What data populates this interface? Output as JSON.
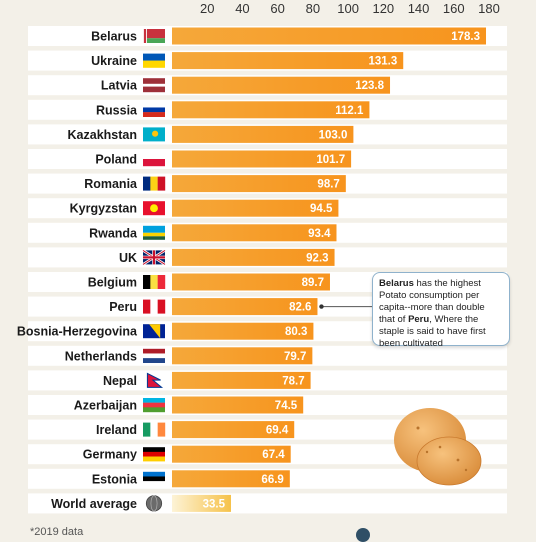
{
  "chart_data": {
    "type": "bar",
    "orientation": "horizontal",
    "x_ticks": [
      20,
      40,
      60,
      80,
      100,
      120,
      140,
      160,
      180
    ],
    "xlim": [
      0,
      180
    ],
    "categories": [
      "Belarus",
      "Ukraine",
      "Latvia",
      "Russia",
      "Kazakhstan",
      "Poland",
      "Romania",
      "Kyrgyzstan",
      "Rwanda",
      "UK",
      "Belgium",
      "Peru",
      "Bosnia-Herzegovina",
      "Netherlands",
      "Nepal",
      "Azerbaijan",
      "Ireland",
      "Germany",
      "Estonia",
      "World average"
    ],
    "values": [
      178.3,
      131.3,
      123.8,
      112.1,
      103.0,
      101.7,
      98.7,
      94.5,
      93.4,
      92.3,
      89.7,
      82.6,
      80.3,
      79.7,
      78.7,
      74.5,
      69.4,
      67.4,
      66.9,
      33.5
    ],
    "value_labels": [
      "178.3",
      "131.3",
      "123.8",
      "112.1",
      "103.0",
      "101.7",
      "98.7",
      "94.5",
      "93.4",
      "92.3",
      "89.7",
      "82.6",
      "80.3",
      "79.7",
      "78.7",
      "74.5",
      "69.4",
      "67.4",
      "66.9",
      "33.5"
    ],
    "flags": [
      "belarus-flag",
      "ukraine-flag",
      "latvia-flag",
      "russia-flag",
      "kazakhstan-flag",
      "poland-flag",
      "romania-flag",
      "kyrgyzstan-flag",
      "rwanda-flag",
      "uk-flag",
      "belgium-flag",
      "peru-flag",
      "bosnia-herzegovina-flag",
      "netherlands-flag",
      "nepal-flag",
      "azerbaijan-flag",
      "ireland-flag",
      "germany-flag",
      "estonia-flag",
      "globe-icon"
    ],
    "colors": {
      "bar": "#f7941d",
      "bar_light": "#fcd47a",
      "row_bg": "#ffffff"
    }
  },
  "annotation": {
    "country1": "Belarus",
    "text1": " has the highest Potato consumption per capita--more than double that of ",
    "country2": "Peru",
    "text2": ", Where the  staple is said to have first been cultivated"
  },
  "footer": {
    "note": "*2019 data"
  }
}
